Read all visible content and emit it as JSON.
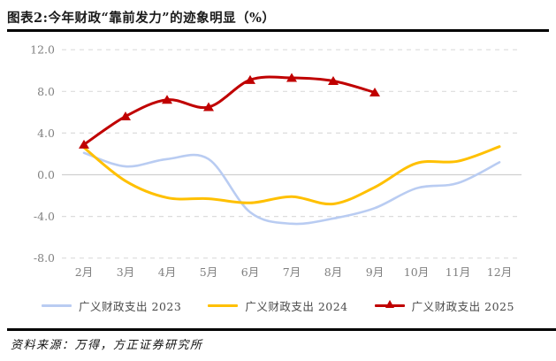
{
  "title": "图表2:今年财政“靠前发力”的迹象明显（%）",
  "source": "资料来源：万得，方正证券研究所",
  "chart_data": {
    "type": "line",
    "title": "图表2:今年财政“靠前发力”的迹象明显（%）",
    "categories": [
      "2月",
      "3月",
      "4月",
      "5月",
      "6月",
      "7月",
      "8月",
      "9月",
      "10月",
      "11月",
      "12月"
    ],
    "series": [
      {
        "name": "广义财政支出 2023",
        "color": "#B9CCF2",
        "marker": "none",
        "values": [
          2.1,
          0.8,
          1.5,
          1.5,
          -3.6,
          -4.7,
          -4.2,
          -3.2,
          -1.3,
          -0.8,
          1.2
        ]
      },
      {
        "name": "广义财政支出 2024",
        "color": "#FFC000",
        "marker": "none",
        "values": [
          2.6,
          -0.6,
          -2.2,
          -2.3,
          -2.7,
          -2.1,
          -2.8,
          -1.2,
          1.1,
          1.3,
          2.7
        ]
      },
      {
        "name": "广义财政支出 2025",
        "color": "#C00000",
        "marker": "triangle",
        "values": [
          2.9,
          5.6,
          7.2,
          6.5,
          9.1,
          9.3,
          9.0,
          7.9
        ]
      }
    ],
    "ylim": [
      -8,
      12
    ],
    "ytick_values": [
      12,
      8,
      4,
      0,
      -4,
      -8
    ],
    "ytick_labels": [
      "12.0",
      "8.0",
      "4.0",
      "0.0",
      "-4.0",
      "-8.0"
    ],
    "grid": "horizontal dashed, solid zero line",
    "legend_position": "bottom",
    "axis_text_color": "#808080",
    "grid_color": "#dcdcdc",
    "zero_line_color": "#d0d0d0"
  }
}
